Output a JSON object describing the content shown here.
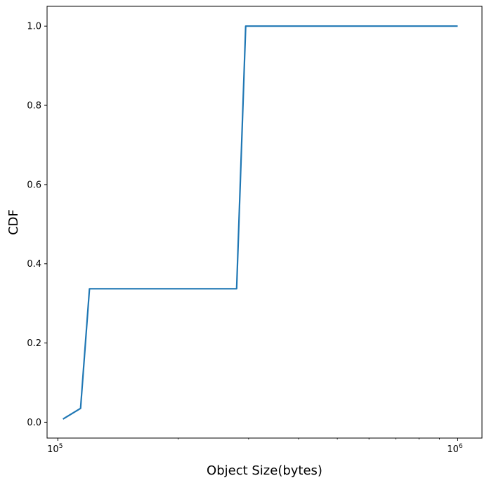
{
  "chart_data": {
    "type": "line",
    "xlabel": "Object Size(bytes)",
    "ylabel": "CDF",
    "xscale": "log",
    "xlim": [
      94000,
      1150000
    ],
    "ylim": [
      -0.04,
      1.05
    ],
    "grid": false,
    "x_ticks": [
      {
        "value": 100000,
        "base": "10",
        "exp": "5"
      },
      {
        "value": 1000000,
        "base": "10",
        "exp": "6"
      }
    ],
    "y_ticks": [
      {
        "value": 0.0,
        "label": "0.0"
      },
      {
        "value": 0.2,
        "label": "0.2"
      },
      {
        "value": 0.4,
        "label": "0.4"
      },
      {
        "value": 0.6,
        "label": "0.6"
      },
      {
        "value": 0.8,
        "label": "0.8"
      },
      {
        "value": 1.0,
        "label": "1.0"
      }
    ],
    "series": [
      {
        "color": "#1f77b4",
        "x": [
          103000,
          114000,
          120000,
          280000,
          295000,
          1000000
        ],
        "y": [
          0.008,
          0.035,
          0.337,
          0.337,
          1.0,
          1.0
        ]
      }
    ]
  }
}
